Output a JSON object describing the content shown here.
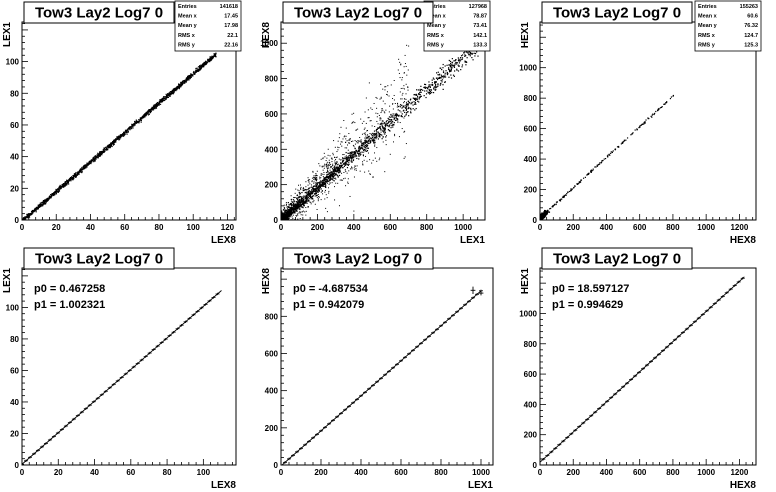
{
  "chart_data": [
    {
      "type": "scatter",
      "title": "Tow3 Lay2 Log7 0",
      "xlabel": "LEX8",
      "ylabel": "LEX1",
      "xlim": [
        0,
        125
      ],
      "ylim": [
        0,
        125
      ],
      "xticks": [
        0,
        20,
        40,
        60,
        80,
        100,
        120
      ],
      "yticks": [
        0,
        20,
        40,
        60,
        80,
        100
      ],
      "stats": [
        {
          "label": "Entries",
          "value": "141618"
        },
        {
          "label": "Mean x",
          "value": "17.45"
        },
        {
          "label": "Mean y",
          "value": "17.98"
        },
        {
          "label": "RMS x",
          "value": "22.1"
        },
        {
          "label": "RMS y",
          "value": "22.16"
        }
      ],
      "trend": {
        "x0": 0,
        "x1": 113,
        "slope": 0.93,
        "intercept": 0,
        "spread": 1.2
      },
      "outliers": 0,
      "outlier_range": 0,
      "density": "high"
    },
    {
      "type": "scatter",
      "title": "Tow3 Lay2 Log7 0",
      "xlabel": "LEX1",
      "ylabel": "HEX8",
      "xlim": [
        0,
        1120
      ],
      "ylim": [
        0,
        1120
      ],
      "xticks": [
        0,
        200,
        400,
        600,
        800,
        1000
      ],
      "yticks": [
        0,
        200,
        400,
        600,
        800,
        1000
      ],
      "stats": [
        {
          "label": "Entries",
          "value": "127968"
        },
        {
          "label": "Mean x",
          "value": "78.87"
        },
        {
          "label": "Mean y",
          "value": "73.41"
        },
        {
          "label": "RMS x",
          "value": "142.1"
        },
        {
          "label": "RMS y",
          "value": "133.3"
        }
      ],
      "trend": {
        "x0": 0,
        "x1": 1080,
        "slope": 0.93,
        "intercept": 0,
        "spread": 30
      },
      "outliers": 1100,
      "outlier_range": 700,
      "density": "medium"
    },
    {
      "type": "scatter",
      "title": "Tow3 Lay2 Log7 0",
      "xlabel": "HEX8",
      "ylabel": "HEX1",
      "xlim": [
        0,
        1300
      ],
      "ylim": [
        0,
        1300
      ],
      "xticks": [
        0,
        200,
        400,
        600,
        800,
        1000,
        1200
      ],
      "yticks": [
        0,
        200,
        400,
        600,
        800,
        1000
      ],
      "stats": [
        {
          "label": "Entries",
          "value": "155263"
        },
        {
          "label": "Mean x",
          "value": "60.6"
        },
        {
          "label": "Mean y",
          "value": "76.32"
        },
        {
          "label": "RMS x",
          "value": "124.7"
        },
        {
          "label": "RMS y",
          "value": "125.3"
        }
      ],
      "trend": {
        "x0": 0,
        "x1": 800,
        "slope": 1.0,
        "intercept": 18.6,
        "spread": 6
      },
      "outliers": 0,
      "outlier_range": 0,
      "density": "sparse"
    },
    {
      "type": "line",
      "title": "Tow3 Lay2 Log7 0",
      "xlabel": "LEX8",
      "ylabel": "LEX1",
      "xlim": [
        0,
        118
      ],
      "ylim": [
        0,
        125
      ],
      "xticks": [
        0,
        20,
        40,
        60,
        80,
        100
      ],
      "yticks": [
        0,
        20,
        40,
        60,
        80,
        100
      ],
      "fit": {
        "p0_label": "p0 = 0.467258",
        "p1_label": "p1 = 1.002321",
        "p0": 0.467258,
        "p1": 1.002321
      },
      "profile": {
        "x0": 0,
        "x1": 110,
        "step": 2.2,
        "err_points": []
      }
    },
    {
      "type": "line",
      "title": "Tow3 Lay2 Log7 0",
      "xlabel": "LEX1",
      "ylabel": "HEX8",
      "xlim": [
        0,
        1060
      ],
      "ylim": [
        0,
        1060
      ],
      "xticks": [
        0,
        200,
        400,
        600,
        800,
        1000
      ],
      "yticks": [
        0,
        200,
        400,
        600,
        800
      ],
      "fit": {
        "p0_label": "p0 = -4.687534",
        "p1_label": "p1 = 0.942079",
        "p0": -4.687534,
        "p1": 0.942079
      },
      "profile": {
        "x0": 20,
        "x1": 1000,
        "step": 20,
        "err_points": [
          {
            "x": 960,
            "y": 940,
            "ex": 12,
            "ey": 20
          },
          {
            "x": 1000,
            "y": 925,
            "ex": 12,
            "ey": 12
          }
        ]
      }
    },
    {
      "type": "line",
      "title": "Tow3 Lay2 Log7 0",
      "xlabel": "HEX8",
      "ylabel": "HEX1",
      "xlim": [
        0,
        1300
      ],
      "ylim": [
        0,
        1300
      ],
      "xticks": [
        0,
        200,
        400,
        600,
        800,
        1000,
        1200
      ],
      "yticks": [
        0,
        200,
        400,
        600,
        800,
        1000
      ],
      "fit": {
        "p0_label": "p0 = 18.597127",
        "p1_label": "p1 = 0.994629",
        "p0": 18.597127,
        "p1": 0.994629
      },
      "profile": {
        "x0": 20,
        "x1": 1230,
        "step": 24,
        "err_points": []
      }
    }
  ]
}
